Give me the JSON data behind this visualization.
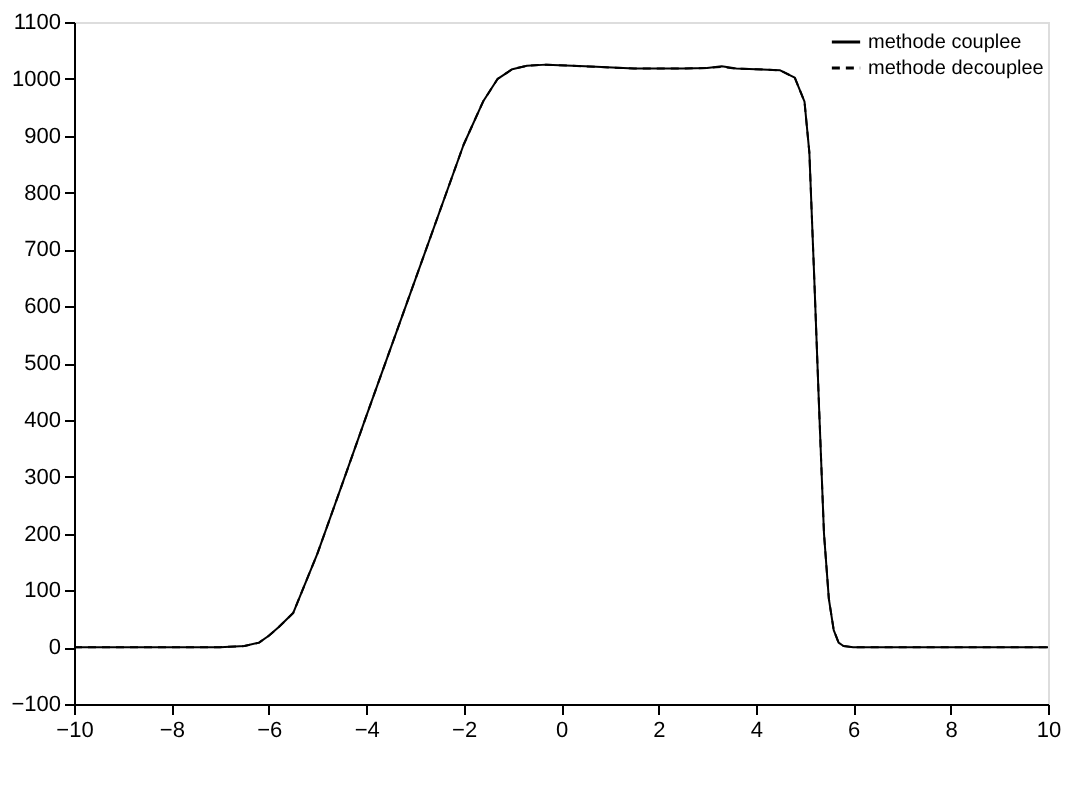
{
  "chart_data": {
    "type": "line",
    "x": [
      -10,
      -7,
      -6.5,
      -6.2,
      -6,
      -5.8,
      -5.5,
      -5,
      -4.5,
      -4,
      -3,
      -2,
      -1.6,
      -1.3,
      -1,
      -0.7,
      -0.3,
      0.5,
      1.5,
      2.5,
      3,
      3.3,
      3.6,
      4,
      4.5,
      4.8,
      5,
      5.1,
      5.2,
      5.3,
      5.4,
      5.5,
      5.6,
      5.7,
      5.8,
      6,
      7,
      10
    ],
    "series": [
      {
        "name": "methode couplee",
        "color": "#000000",
        "line_style": "solid",
        "values": [
          0,
          0,
          2,
          8,
          20,
          35,
          60,
          165,
          285,
          406,
          645,
          884,
          960,
          1000,
          1017,
          1023,
          1025,
          1022,
          1018,
          1018,
          1019,
          1022,
          1018,
          1017,
          1015,
          1002,
          960,
          870,
          650,
          420,
          200,
          85,
          30,
          8,
          2,
          0,
          0,
          0
        ]
      },
      {
        "name": "methode decouplee",
        "color": "#000000",
        "line_style": "dashed",
        "values": [
          0,
          0,
          2,
          8,
          20,
          35,
          60,
          165,
          285,
          406,
          645,
          884,
          960,
          1000,
          1017,
          1023,
          1025,
          1022,
          1018,
          1018,
          1019,
          1021,
          1018,
          1017,
          1015,
          1002,
          960,
          870,
          650,
          420,
          200,
          85,
          30,
          8,
          2,
          0,
          0,
          0
        ]
      }
    ],
    "xlim": [
      -10,
      10
    ],
    "xticks": [
      -10,
      -8,
      -6,
      -4,
      -2,
      0,
      2,
      4,
      6,
      8,
      10
    ],
    "ylim": [
      -100,
      1100
    ],
    "yticks": [
      -100,
      0,
      100,
      200,
      300,
      400,
      500,
      600,
      700,
      800,
      900,
      1000,
      1100
    ],
    "grid": false,
    "legend": "top right",
    "marker": "none"
  }
}
